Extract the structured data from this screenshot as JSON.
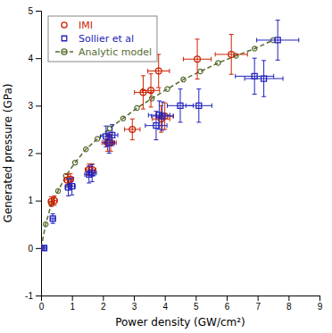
{
  "chart_data": {
    "type": "scatter",
    "xlabel": "Power density (GW/cm²)",
    "ylabel": "Generated pressure (GPa)",
    "xlim": [
      0,
      9
    ],
    "ylim": [
      -1,
      5
    ],
    "xticks": [
      0,
      1,
      2,
      3,
      4,
      5,
      6,
      7,
      8,
      9
    ],
    "yticks": [
      -1,
      0,
      1,
      2,
      3,
      4,
      5
    ],
    "grid": false,
    "legend": "upper left",
    "series": [
      {
        "name": "IMI",
        "type": "scatter",
        "marker": "circle",
        "color": "#cc2200",
        "x": [
          0.33,
          0.43,
          0.85,
          0.95,
          1.55,
          1.65,
          2.15,
          2.25,
          2.95,
          3.3,
          3.55,
          3.8,
          3.88,
          4.0,
          5.05,
          6.15
        ],
        "values": [
          0.98,
          1.0,
          1.43,
          1.45,
          1.65,
          1.65,
          2.22,
          2.22,
          2.5,
          3.28,
          3.32,
          3.73,
          2.72,
          2.78,
          3.98,
          4.08
        ],
        "xerr": [
          0.08,
          0.08,
          0.1,
          0.1,
          0.12,
          0.12,
          0.18,
          0.18,
          0.25,
          0.28,
          0.28,
          0.35,
          0.28,
          0.28,
          0.45,
          0.52
        ],
        "yerr": [
          0.1,
          0.1,
          0.12,
          0.12,
          0.12,
          0.12,
          0.18,
          0.18,
          0.22,
          0.35,
          0.35,
          0.35,
          0.28,
          0.28,
          0.42,
          0.42
        ]
      },
      {
        "name": "Sollier et al",
        "type": "scatter",
        "marker": "square",
        "color": "#2222bb",
        "x": [
          0.1,
          0.38,
          0.88,
          1.0,
          1.55,
          1.65,
          2.1,
          2.2,
          2.3,
          3.72,
          3.82,
          3.92,
          4.5,
          5.1,
          6.9,
          7.2,
          7.65
        ],
        "values": [
          0.0,
          0.62,
          1.28,
          1.3,
          1.55,
          1.58,
          2.35,
          2.22,
          2.38,
          2.58,
          2.8,
          2.78,
          3.0,
          3.0,
          3.62,
          3.57,
          4.38
        ],
        "xerr": [
          0.05,
          0.07,
          0.1,
          0.1,
          0.14,
          0.14,
          0.18,
          0.18,
          0.18,
          0.35,
          0.35,
          0.35,
          0.42,
          0.42,
          0.62,
          0.62,
          0.68
        ],
        "yerr": [
          0.05,
          0.1,
          0.18,
          0.18,
          0.18,
          0.18,
          0.22,
          0.22,
          0.22,
          0.3,
          0.3,
          0.3,
          0.35,
          0.35,
          0.38,
          0.38,
          0.42
        ]
      },
      {
        "name": "Analytic model",
        "type": "line",
        "marker": "circle",
        "line_style": "dashed",
        "color": "#556b2f",
        "x": [
          0.0,
          0.15,
          0.33,
          0.55,
          0.8,
          1.1,
          1.45,
          1.82,
          2.22,
          2.65,
          3.1,
          3.58,
          4.08,
          4.6,
          5.15,
          5.72,
          6.3,
          6.9,
          7.5
        ],
        "values": [
          0.0,
          0.5,
          0.93,
          1.2,
          1.52,
          1.8,
          2.08,
          2.3,
          2.52,
          2.73,
          2.95,
          3.15,
          3.35,
          3.55,
          3.72,
          3.9,
          4.05,
          4.2,
          4.38
        ]
      }
    ]
  }
}
